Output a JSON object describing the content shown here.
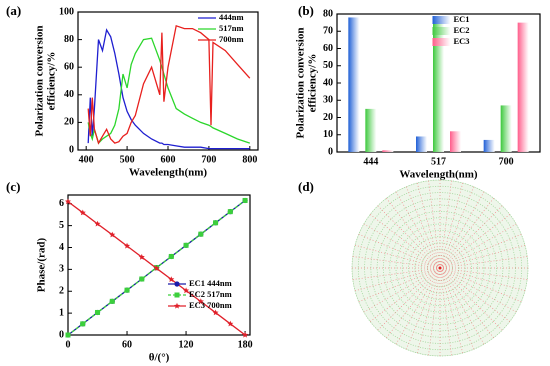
{
  "chart_data": [
    {
      "type": "line",
      "panel_label": "(a)",
      "xlabel": "Wavelength(nm)",
      "ylabel": [
        "Polarization conversion",
        "efficiency/%"
      ],
      "xlim": [
        380,
        820
      ],
      "xticks": [
        400,
        500,
        600,
        700,
        800
      ],
      "ylim": [
        0,
        100
      ],
      "yticks": [
        0,
        20,
        40,
        60,
        80,
        100
      ],
      "legend": "upper right",
      "x": [
        405,
        410,
        415,
        420,
        430,
        440,
        450,
        460,
        470,
        480,
        490,
        500,
        510,
        520,
        540,
        560,
        580,
        585,
        590,
        600,
        620,
        640,
        660,
        680,
        700,
        705,
        710,
        740,
        770,
        800
      ],
      "series": [
        {
          "name": "444nm",
          "color": "#1f1fd0",
          "values": [
            5,
            38,
            10,
            30,
            80,
            72,
            87,
            82,
            70,
            55,
            38,
            28,
            22,
            18,
            12,
            8,
            5,
            5,
            4,
            4,
            3,
            2,
            2,
            2,
            1,
            1,
            1,
            1,
            1,
            1
          ]
        },
        {
          "name": "517nm",
          "color": "#2bd62b",
          "values": [
            20,
            12,
            8,
            15,
            5,
            8,
            10,
            12,
            18,
            30,
            55,
            45,
            62,
            70,
            80,
            81,
            65,
            60,
            55,
            45,
            30,
            26,
            23,
            20,
            18,
            17,
            16,
            12,
            8,
            5
          ]
        },
        {
          "name": "700nm",
          "color": "#e8201e",
          "values": [
            30,
            10,
            38,
            15,
            5,
            10,
            15,
            8,
            5,
            6,
            10,
            12,
            20,
            25,
            48,
            60,
            40,
            85,
            35,
            60,
            90,
            88,
            88,
            85,
            80,
            18,
            78,
            72,
            62,
            52
          ]
        }
      ]
    },
    {
      "type": "bar",
      "panel_label": "(b)",
      "xlabel": "Wavelength(nm)",
      "ylabel": [
        "Polarization conversion",
        "efficiency/%"
      ],
      "categories": [
        "444",
        "517",
        "700"
      ],
      "ylim": [
        0,
        80
      ],
      "yticks": [
        0,
        10,
        20,
        30,
        40,
        50,
        60,
        70,
        80
      ],
      "legend": "upper center",
      "series": [
        {
          "name": "EC1",
          "color": "#1f5fd6",
          "values": [
            78,
            9,
            7
          ]
        },
        {
          "name": "EC2",
          "color": "#3cc83c",
          "values": [
            25,
            76,
            27
          ]
        },
        {
          "name": "EC3",
          "color": "#ff5c8a",
          "values": [
            1,
            12,
            75
          ]
        }
      ]
    },
    {
      "type": "line",
      "panel_label": "(c)",
      "xlabel": "θ/(°)",
      "ylabel": [
        "Phase/(rad)"
      ],
      "xlim": [
        0,
        185
      ],
      "xticks": [
        0,
        60,
        120,
        180
      ],
      "ylim": [
        0,
        6.4
      ],
      "yticks": [
        0,
        1,
        2,
        3,
        4,
        5,
        6
      ],
      "legend": "lower right",
      "x": [
        0,
        15,
        30,
        45,
        60,
        75,
        90,
        105,
        120,
        135,
        150,
        165,
        180
      ],
      "series": [
        {
          "name": "EC1 444nm",
          "color": "#1a1aa8",
          "marker": "circle",
          "values": [
            0,
            0.51,
            1.03,
            1.54,
            2.05,
            2.56,
            3.08,
            3.59,
            4.1,
            4.61,
            5.13,
            5.64,
            6.15
          ]
        },
        {
          "name": "EC2 517nm",
          "color": "#3ccf3c",
          "marker": "square",
          "dash": true,
          "values": [
            0,
            0.51,
            1.03,
            1.54,
            2.05,
            2.56,
            3.08,
            3.59,
            4.1,
            4.61,
            5.13,
            5.64,
            6.15
          ]
        },
        {
          "name": "EC3 700nm",
          "color": "#e0202a",
          "marker": "star",
          "values": [
            6.1,
            5.59,
            5.08,
            4.58,
            4.07,
            3.56,
            3.05,
            2.54,
            2.03,
            1.53,
            1.02,
            0.51,
            0
          ]
        }
      ]
    },
    {
      "type": "image",
      "panel_label": "(d)"
    }
  ]
}
